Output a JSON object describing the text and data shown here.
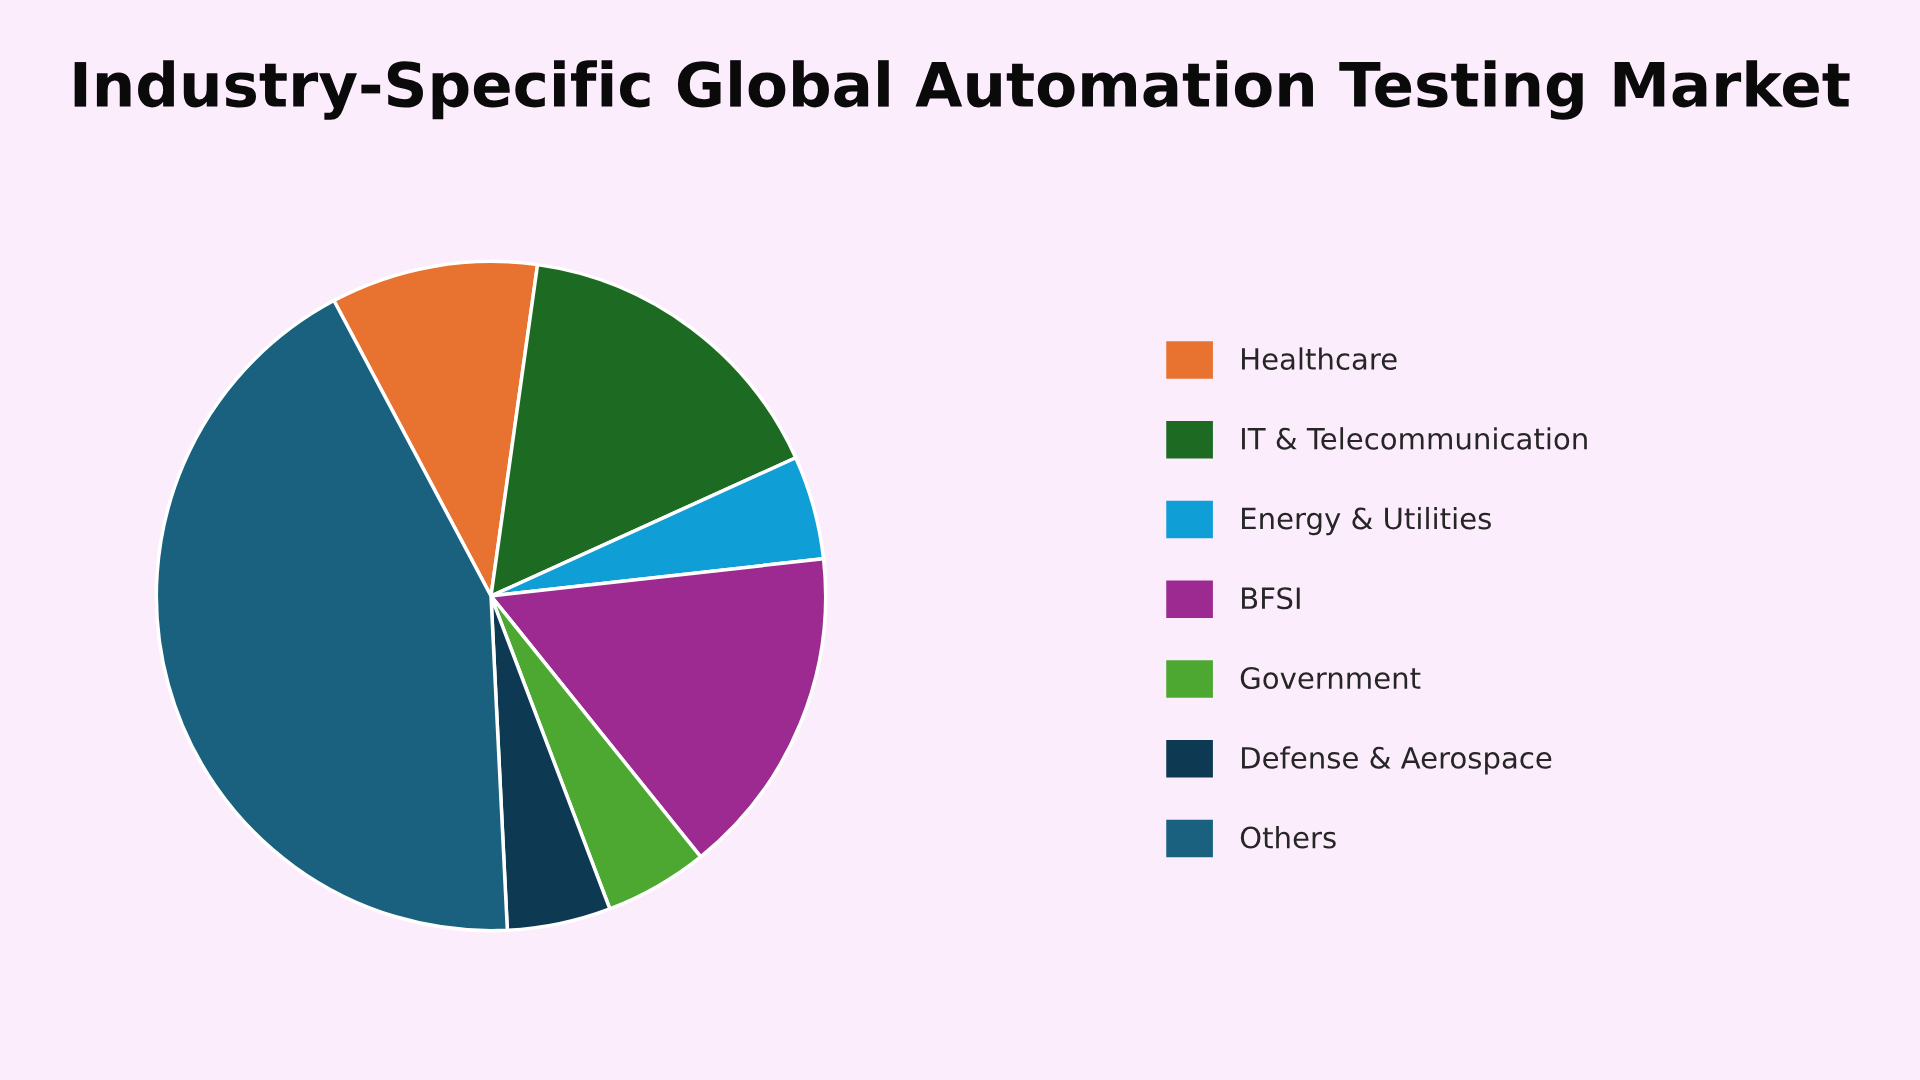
{
  "chart_data": {
    "type": "pie",
    "title": "Industry-Specific Global Automation Testing Market",
    "categories": [
      "Healthcare",
      "IT & Telecommunication",
      "Energy & Utilities",
      "BFSI",
      "Government",
      "Defense & Aerospace",
      "Others"
    ],
    "values": [
      10,
      16,
      5,
      16,
      5,
      5,
      43
    ],
    "colors": [
      "#e87331",
      "#1d6b22",
      "#109ed6",
      "#9c2a91",
      "#4da831",
      "#0d3a52",
      "#19617f"
    ],
    "legend": "right"
  }
}
